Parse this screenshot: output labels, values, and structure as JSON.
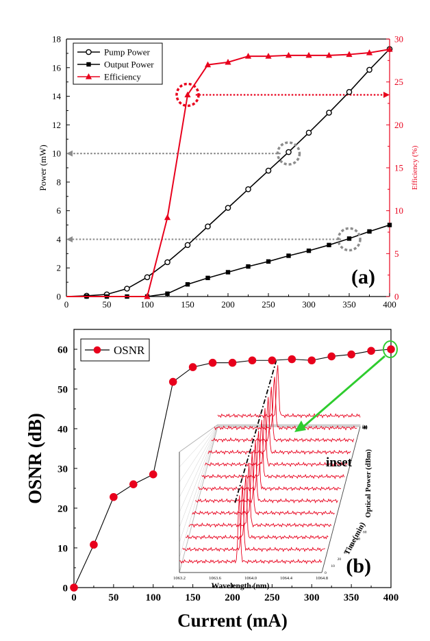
{
  "chart_data": [
    {
      "panel": "(a)",
      "type": "line",
      "xlim": [
        0,
        400
      ],
      "x_ticks": [
        "0",
        "50",
        "100",
        "150",
        "200",
        "250",
        "300",
        "350",
        "400"
      ],
      "ylim_left": [
        0,
        18
      ],
      "y_left_ticks": [
        "0",
        "2",
        "4",
        "6",
        "8",
        "10",
        "12",
        "14",
        "16",
        "18"
      ],
      "ylabel_left": "Power (mW)",
      "ylim_right": [
        0,
        30
      ],
      "y_right_ticks": [
        "0",
        "5",
        "10",
        "15",
        "20",
        "25",
        "30"
      ],
      "ylabel_right": "Efficiency (%)",
      "legend_position": "top-left",
      "colors": {
        "black": "#000000",
        "red": "#e8001c",
        "grey": "#8c8c8c"
      },
      "series": [
        {
          "name": "Pump Power",
          "axis": "left",
          "marker": "circle",
          "color": "#000000",
          "x": [
            25,
            50,
            75,
            100,
            125,
            150,
            175,
            200,
            225,
            250,
            275,
            300,
            325,
            350,
            375,
            400
          ],
          "y": [
            0.05,
            0.15,
            0.55,
            1.35,
            2.4,
            3.6,
            4.9,
            6.2,
            7.5,
            8.8,
            10.1,
            11.45,
            12.85,
            14.3,
            15.85,
            17.3
          ]
        },
        {
          "name": "Output Power",
          "axis": "left",
          "marker": "square",
          "color": "#000000",
          "x": [
            25,
            50,
            75,
            100,
            125,
            150,
            175,
            200,
            225,
            250,
            275,
            300,
            325,
            350,
            375,
            400
          ],
          "y": [
            0,
            0,
            0,
            0,
            0.2,
            0.85,
            1.3,
            1.7,
            2.1,
            2.45,
            2.85,
            3.2,
            3.6,
            4.05,
            4.55,
            5.0
          ]
        },
        {
          "name": "Efficiency",
          "axis": "right",
          "marker": "triangle",
          "color": "#e8001c",
          "x": [
            100,
            125,
            150,
            175,
            200,
            225,
            250,
            275,
            300,
            325,
            350,
            375,
            400
          ],
          "y": [
            0,
            9.2,
            23.5,
            27.0,
            27.3,
            28.0,
            28.0,
            28.1,
            28.1,
            28.1,
            28.2,
            28.4,
            28.8
          ]
        }
      ],
      "annotations": [
        {
          "type": "dashed-circle",
          "color": "grey",
          "x": 275,
          "y_left": 10
        },
        {
          "type": "dashed-circle",
          "color": "grey",
          "x": 350,
          "y_left": 4
        },
        {
          "type": "dashed-circle",
          "color": "red",
          "x": 150,
          "y_right": 23.5
        },
        {
          "type": "dotted-arrow",
          "color": "grey",
          "direction": "left",
          "y_left": 10,
          "from_x": 265,
          "to_x": 0
        },
        {
          "type": "dotted-arrow",
          "color": "grey",
          "direction": "left",
          "y_left": 4,
          "from_x": 340,
          "to_x": 0
        },
        {
          "type": "dotted-arrow",
          "color": "red",
          "direction": "right",
          "y_right": 23.5,
          "from_x": 160,
          "to_x": 400
        }
      ]
    },
    {
      "panel": "(b)",
      "type": "line",
      "xlabel": "Current (mA)",
      "ylabel": "OSNR (dB)",
      "xlim": [
        0,
        400
      ],
      "x_ticks": [
        "0",
        "50",
        "100",
        "150",
        "200",
        "250",
        "300",
        "350",
        "400"
      ],
      "ylim": [
        0,
        65
      ],
      "y_ticks": [
        "0",
        "10",
        "20",
        "30",
        "40",
        "50",
        "60"
      ],
      "legend_position": "top-left",
      "series": [
        {
          "name": "OSNR",
          "marker": "circle",
          "color": "#e8001c",
          "x": [
            0,
            25,
            50,
            75,
            100,
            125,
            150,
            175,
            200,
            225,
            250,
            275,
            300,
            325,
            350,
            375,
            400
          ],
          "y": [
            0,
            10.8,
            22.8,
            26.0,
            28.5,
            51.8,
            55.5,
            56.6,
            56.6,
            57.2,
            57.2,
            57.5,
            57.2,
            58.2,
            58.7,
            59.6,
            60.0
          ]
        }
      ],
      "inset": {
        "label": "inset",
        "xlabel": "Wavelength (nm)",
        "x_ticks": [
          "1063.2",
          "1063.6",
          "1064.0",
          "1064.4",
          "1064.8"
        ],
        "ylabel": "Time(min)",
        "zlabel": "Optical Power (dBm)",
        "z_ticks": [
          "0",
          "-10",
          "-20",
          "-30",
          "-40",
          "-50",
          "-60",
          "-70",
          "-80"
        ],
        "time_ticks": [
          "0",
          "10",
          "20",
          "30",
          "40",
          "50",
          "60"
        ],
        "traces": 13
      }
    }
  ]
}
